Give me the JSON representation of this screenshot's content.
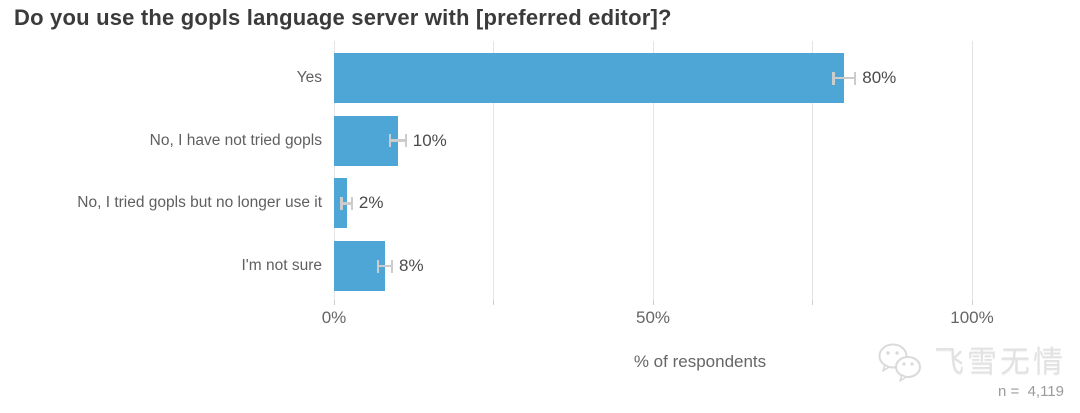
{
  "title": "Do you use the gopls language server with [preferred editor]?",
  "chart_data": {
    "type": "bar",
    "orientation": "horizontal",
    "title": "Do you use the gopls language server with [preferred editor]?",
    "categories": [
      "Yes",
      "No, I have not tried gopls",
      "No, I tried gopls but no longer use it",
      "I'm not sure"
    ],
    "values": [
      80,
      10,
      2,
      8
    ],
    "value_labels": [
      "80%",
      "10%",
      "2%",
      "8%"
    ],
    "error_margins_pct": [
      1.7,
      1.25,
      0.8,
      1.1
    ],
    "xlabel": "% of respondents",
    "ylabel": "",
    "xlim": [
      0,
      100
    ],
    "x_ticks": [
      {
        "pct": 0,
        "label": "0%"
      },
      {
        "pct": 50,
        "label": "50%"
      },
      {
        "pct": 100,
        "label": "100%"
      }
    ],
    "gridlines_pct": [
      0,
      25,
      50,
      75,
      100
    ],
    "grid_on": true,
    "legend": "none",
    "bar_color": "#4da6d6",
    "errorbar_color": "#cccccc",
    "grid_color": "#e4e4e4"
  },
  "footer": {
    "sample_size": "n =  4,119"
  },
  "watermark": {
    "icon": "wechat-icon",
    "text": "飞雪无情"
  }
}
